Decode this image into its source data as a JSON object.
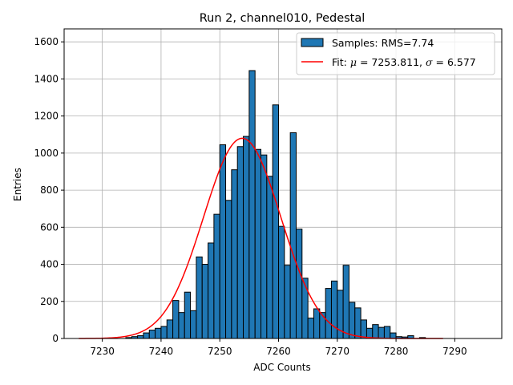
{
  "chart_data": {
    "type": "bar",
    "subtype": "histogram",
    "title": "Run 2, channel010, Pedestal",
    "xlabel": "ADC Counts",
    "ylabel": "Entries",
    "xlim": [
      7223.5,
      7298.0
    ],
    "ylim": [
      0,
      1670
    ],
    "grid": true,
    "xticks": [
      7230,
      7240,
      7250,
      7260,
      7270,
      7280,
      7290
    ],
    "yticks": [
      0,
      200,
      400,
      600,
      800,
      1000,
      1200,
      1400,
      1600
    ],
    "bin_width": 1,
    "bin_start": 7226,
    "counts": [
      0,
      0,
      0,
      0,
      0,
      0,
      0,
      0,
      5,
      10,
      15,
      30,
      45,
      55,
      65,
      100,
      205,
      140,
      250,
      150,
      440,
      400,
      515,
      670,
      1045,
      745,
      910,
      1035,
      1090,
      1445,
      1020,
      990,
      875,
      1260,
      605,
      395,
      1110,
      590,
      325,
      110,
      160,
      140,
      270,
      310,
      260,
      395,
      195,
      165,
      100,
      55,
      75,
      60,
      65,
      30,
      10,
      8,
      15,
      0,
      5,
      0,
      0,
      0,
      0,
      0,
      0,
      0,
      0,
      0,
      0
    ],
    "series": [
      {
        "name": "Samples: RMS=7.74",
        "kind": "histogram",
        "color": "#1f77b4",
        "edgecolor": "#000000"
      },
      {
        "name": "Fit: μ = 7253.811, σ = 6.577",
        "kind": "line",
        "color": "#ff0000",
        "mu": 7253.811,
        "sigma": 6.577,
        "amplitude": 1080,
        "x_range": [
          7226,
          7288
        ]
      }
    ],
    "legend": {
      "placement": "top-right",
      "samples_label": "Samples: RMS=7.74",
      "fit_prefix": "Fit: ",
      "fit_mu_symbol": "μ",
      "fit_mu_value": " = 7253.811, ",
      "fit_sigma_symbol": "σ",
      "fit_sigma_value": " = 6.577"
    }
  }
}
